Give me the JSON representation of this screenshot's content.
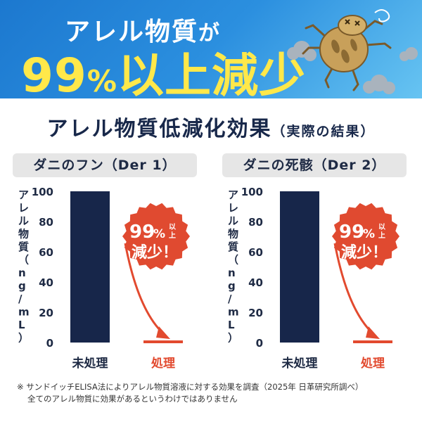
{
  "header": {
    "line1_main": "アレル物質",
    "line1_particle": "が",
    "line2_number": "99",
    "line2_percent": "%",
    "line2_rest": "以上減少"
  },
  "panel": {
    "title": "アレル物質低減化効果",
    "title_note": "（実際の結果）"
  },
  "colors": {
    "untreated_bar": "#17264a",
    "treated_bar": "#e24a2f",
    "badge": "#e04a30",
    "header_yellow": "#ffe84a",
    "header_blue": "#1f7fcf"
  },
  "chart_data": [
    {
      "type": "bar",
      "title": "ダニのフン（Der 1）",
      "ylabel": "アレル物質（ng/mL）",
      "categories": [
        "未処理",
        "処理"
      ],
      "values": [
        100,
        1
      ],
      "ylim": [
        0,
        100
      ],
      "yticks": [
        "0",
        "20",
        "40",
        "60",
        "80",
        "100"
      ],
      "annotation": {
        "number": "99",
        "percent": "%",
        "small": "以上",
        "text": "減少！"
      }
    },
    {
      "type": "bar",
      "title": "ダニの死骸（Der 2）",
      "ylabel": "アレル物質（ng/mL）",
      "categories": [
        "未処理",
        "処理"
      ],
      "values": [
        100,
        1
      ],
      "ylim": [
        0,
        100
      ],
      "yticks": [
        "0",
        "20",
        "40",
        "60",
        "80",
        "100"
      ],
      "annotation": {
        "number": "99",
        "percent": "%",
        "small": "以上",
        "text": "減少！"
      }
    }
  ],
  "footnote": {
    "line1": "※ サンドイッチELISA法によりアレル物質溶液に対する効果を調査（2025年 日革研究所調べ）",
    "line2": "全てのアレル物質に効果があるというわけではありません"
  }
}
